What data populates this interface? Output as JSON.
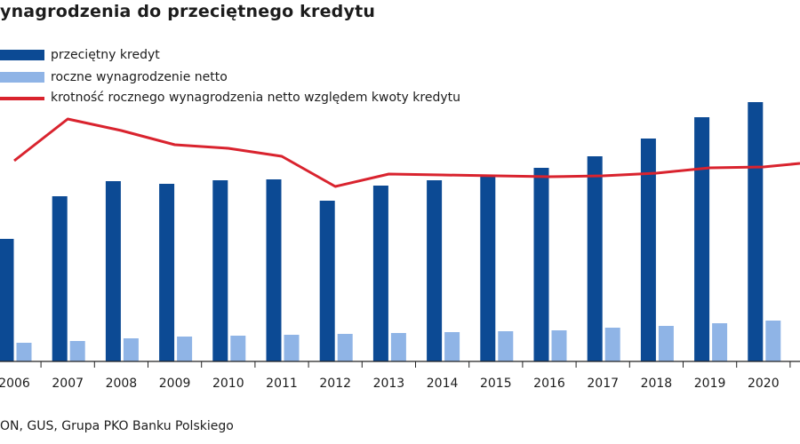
{
  "header": {
    "title": "ynagrodzenia do przeciętnego kredytu"
  },
  "legend": {
    "items": [
      {
        "label": "przeciętny kredyt",
        "kind": "bar",
        "color": "#0c4a94"
      },
      {
        "label": "roczne wynagrodzenie netto",
        "kind": "bar",
        "color": "#8fb4e6"
      },
      {
        "label": "krotność rocznego wynagrodzenia netto względem kwoty kredytu",
        "kind": "line",
        "color": "#d9232e"
      }
    ]
  },
  "footer": {
    "source": "ON, GUS, Grupa PKO Banku Polskiego"
  },
  "chart_data": {
    "type": "bar",
    "categories": [
      "2006",
      "2007",
      "2008",
      "2009",
      "2010",
      "2011",
      "2012",
      "2013",
      "2014",
      "2015",
      "2016",
      "2017",
      "2018",
      "2019",
      "2020"
    ],
    "series": [
      {
        "name": "przeciętny kredyt",
        "type": "bar",
        "color": "#0c4a94",
        "values": [
          138,
          186,
          203,
          200,
          204,
          205,
          181,
          198,
          204,
          210,
          218,
          231,
          251,
          275,
          292
        ]
      },
      {
        "name": "roczne wynagrodzenie netto",
        "type": "bar",
        "color": "#8fb4e6",
        "values": [
          21,
          23,
          26,
          28,
          29,
          30,
          31,
          32,
          33,
          34,
          35,
          38,
          40,
          43,
          46
        ]
      },
      {
        "name": "krotność rocznego wynagrodzenia netto względem kwoty kredytu",
        "type": "line",
        "color": "#d9232e",
        "values": [
          226,
          273,
          260,
          244,
          240,
          231,
          197,
          211,
          210,
          209,
          208,
          209,
          212,
          218,
          219
        ]
      }
    ],
    "x_extra_end": 223,
    "ylim": [
      0,
      315
    ],
    "grid": false,
    "legend_position": "top-left"
  }
}
